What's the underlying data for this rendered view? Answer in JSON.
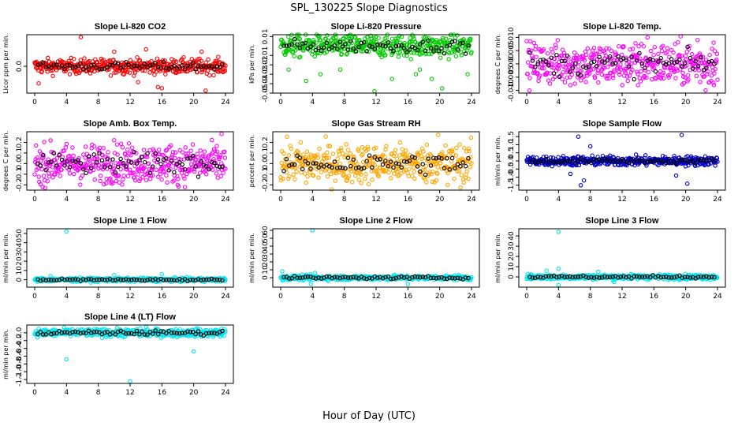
{
  "figure": {
    "title": "SPL_130225  Slope Diagnostics",
    "xlabel": "Hour of Day (UTC)"
  },
  "chart_data": [
    {
      "type": "scatter",
      "title": "Slope Li-820 CO2",
      "ylabel": "Licor ppm per min.",
      "color": "#ff0000",
      "xlim": [
        0,
        24
      ],
      "xticks": [
        0,
        4,
        8,
        12,
        16,
        20,
        24
      ],
      "ylim": [
        -1.1,
        1.3
      ],
      "yticks": [
        {
          "v": 0.0,
          "label": "0.0"
        }
      ],
      "series": [
        {
          "center": 0.0,
          "spread": 0.15,
          "outliers": [
            [
              5.8,
              1.2
            ],
            [
              0.5,
              -0.7
            ],
            [
              10,
              0.6
            ],
            [
              13,
              -0.65
            ],
            [
              15.5,
              -0.85
            ],
            [
              16,
              -0.9
            ],
            [
              21.5,
              -1.0
            ],
            [
              21,
              0.6
            ],
            [
              14,
              0.7
            ]
          ]
        }
      ]
    },
    {
      "type": "scatter",
      "title": "Slope Li-820 Pressure",
      "ylabel": "kPa per min.",
      "color": "#00cc00",
      "xlim": [
        0,
        24
      ],
      "xticks": [
        0,
        4,
        8,
        12,
        16,
        20,
        24
      ],
      "ylim": [
        -0.05,
        0.012
      ],
      "yticks": [
        {
          "v": 0.01,
          "label": "0.01"
        },
        {
          "v": -0.01,
          "label": "-0.01"
        },
        {
          "v": -0.02,
          "label": "-0.02"
        },
        {
          "v": -0.03,
          "label": "-0.03"
        },
        {
          "v": -0.04,
          "label": "-0.04"
        },
        {
          "v": -0.05,
          "label": "-0.05"
        }
      ],
      "series": [
        {
          "center": 0.0,
          "spread": 0.006,
          "outliers": [
            [
              1,
              -0.025
            ],
            [
              3.2,
              -0.037
            ],
            [
              5,
              -0.03
            ],
            [
              7.5,
              -0.025
            ],
            [
              11.8,
              -0.048
            ],
            [
              14,
              -0.035
            ],
            [
              17,
              -0.03
            ],
            [
              17.5,
              -0.025
            ],
            [
              19,
              -0.035
            ],
            [
              20.3,
              -0.045
            ],
            [
              23.5,
              -0.03
            ]
          ]
        }
      ]
    },
    {
      "type": "scatter",
      "title": "Slope Li-820 Temp.",
      "ylabel": "degrees C per min.",
      "color": "#ff00ff",
      "xlim": [
        0,
        24
      ],
      "xticks": [
        0,
        4,
        8,
        12,
        16,
        20,
        24
      ],
      "ylim": [
        -0.011,
        0.011
      ],
      "yticks": [
        {
          "v": 0.01,
          "label": "0.010"
        },
        {
          "v": 0.005,
          "label": "0.005"
        },
        {
          "v": 0.0,
          "label": "0.000"
        },
        {
          "v": -0.005,
          "label": "-0.005"
        },
        {
          "v": -0.01,
          "label": "-0.010"
        }
      ],
      "series": [
        {
          "center": 0.0,
          "spread": 0.004,
          "outliers": [
            [
              15.2,
              0.01
            ],
            [
              21.5,
              0.009
            ],
            [
              23.5,
              0.008
            ],
            [
              14,
              -0.008
            ],
            [
              22.5,
              -0.01
            ],
            [
              9,
              -0.007
            ]
          ]
        }
      ]
    },
    {
      "type": "scatter",
      "title": "Slope Amb. Box Temp.",
      "ylabel": "degrees C per min.",
      "color": "#ff00ff",
      "xlim": [
        0,
        24
      ],
      "xticks": [
        0,
        4,
        8,
        12,
        16,
        20,
        24
      ],
      "ylim": [
        -0.25,
        0.3
      ],
      "yticks": [
        {
          "v": 0.2,
          "label": "0.2"
        },
        {
          "v": 0.1,
          "label": "0.1"
        },
        {
          "v": 0.0,
          "label": "0.0"
        },
        {
          "v": -0.1,
          "label": "-0.1"
        },
        {
          "v": -0.2,
          "label": "-0.2"
        }
      ],
      "series": [
        {
          "center": 0.0,
          "spread": 0.09,
          "outliers": [
            [
              23.5,
              0.28
            ],
            [
              1,
              -0.22
            ],
            [
              10,
              0.22
            ],
            [
              18,
              -0.2
            ]
          ]
        }
      ]
    },
    {
      "type": "scatter",
      "title": "Slope Gas Stream RH",
      "ylabel": "percent per min.",
      "color": "#ffa500",
      "xlim": [
        0,
        24
      ],
      "xticks": [
        0,
        4,
        8,
        12,
        16,
        20,
        24
      ],
      "ylim": [
        -0.25,
        0.3
      ],
      "yticks": [
        {
          "v": 0.2,
          "label": "0.2"
        },
        {
          "v": 0.1,
          "label": "0.1"
        },
        {
          "v": 0.0,
          "label": "0.0"
        },
        {
          "v": -0.1,
          "label": "-0.1"
        },
        {
          "v": -0.2,
          "label": "-0.2"
        }
      ],
      "series": [
        {
          "center": 0.0,
          "spread": 0.09,
          "outliers": [
            [
              19.8,
              0.27
            ],
            [
              21,
              -0.2
            ],
            [
              3.2,
              -0.18
            ]
          ]
        }
      ]
    },
    {
      "type": "scatter",
      "title": "Slope Sample Flow",
      "ylabel": "ml/min per min.",
      "color": "#0000cc",
      "xlim": [
        0,
        24
      ],
      "xticks": [
        0,
        4,
        8,
        12,
        16,
        20,
        24
      ],
      "ylim": [
        -1.8,
        1.8
      ],
      "yticks": [
        {
          "v": 1.5,
          "label": "1.5"
        },
        {
          "v": 1.0,
          "label": "1.0"
        },
        {
          "v": 0.5,
          "label": "0.5"
        },
        {
          "v": 0.0,
          "label": "0.0"
        },
        {
          "v": -0.5,
          "label": "-0.5"
        },
        {
          "v": -1.0,
          "label": "-1.0"
        },
        {
          "v": -1.5,
          "label": "-1.5"
        }
      ],
      "series": [
        {
          "center": 0.0,
          "spread": 0.15,
          "outliers": [
            [
              6.5,
              1.5
            ],
            [
              6.8,
              -1.5
            ],
            [
              7.2,
              -1.2
            ],
            [
              19.5,
              1.6
            ],
            [
              20.2,
              -1.4
            ],
            [
              5.5,
              -0.8
            ],
            [
              8,
              0.9
            ],
            [
              18.8,
              -0.9
            ]
          ]
        }
      ]
    },
    {
      "type": "scatter",
      "title": "Slope Line 1 Flow",
      "ylabel": "ml/min per min.",
      "color": "#00e5ee",
      "xlim": [
        0,
        24
      ],
      "xticks": [
        0,
        4,
        8,
        12,
        16,
        20,
        24
      ],
      "ylim": [
        -8,
        55
      ],
      "yticks": [
        {
          "v": 50,
          "label": "50"
        },
        {
          "v": 40,
          "label": "40"
        },
        {
          "v": 30,
          "label": "30"
        },
        {
          "v": 20,
          "label": "20"
        },
        {
          "v": 10,
          "label": "10"
        },
        {
          "v": 0,
          "label": "0"
        }
      ],
      "series": [
        {
          "center": 0.0,
          "spread": 1.0,
          "outliers": [
            [
              4,
              52
            ],
            [
              16,
              6
            ],
            [
              10,
              5
            ],
            [
              2,
              4
            ]
          ]
        }
      ]
    },
    {
      "type": "scatter",
      "title": "Slope Line 2 Flow",
      "ylabel": "ml/min per min.",
      "color": "#00e5ee",
      "xlim": [
        0,
        24
      ],
      "xticks": [
        0,
        4,
        8,
        12,
        16,
        20,
        24
      ],
      "ylim": [
        -12,
        62
      ],
      "yticks": [
        {
          "v": 60,
          "label": "60"
        },
        {
          "v": 50,
          "label": "50"
        },
        {
          "v": 40,
          "label": "40"
        },
        {
          "v": 30,
          "label": "30"
        },
        {
          "v": 20,
          "label": "20"
        },
        {
          "v": 10,
          "label": "10"
        },
        {
          "v": 0,
          "label": "0"
        }
      ],
      "series": [
        {
          "center": 0.0,
          "spread": 1.5,
          "outliers": [
            [
              4,
              60
            ],
            [
              0.2,
              8
            ],
            [
              3.8,
              -8
            ],
            [
              4.3,
              6
            ],
            [
              16,
              -8
            ]
          ]
        }
      ]
    },
    {
      "type": "scatter",
      "title": "Slope Line 3 Flow",
      "ylabel": "ml/min per min.",
      "color": "#00e5ee",
      "xlim": [
        0,
        24
      ],
      "xticks": [
        0,
        4,
        8,
        12,
        16,
        20,
        24
      ],
      "ylim": [
        -10,
        47
      ],
      "yticks": [
        {
          "v": 40,
          "label": "40"
        },
        {
          "v": 30,
          "label": "30"
        },
        {
          "v": 20,
          "label": "20"
        },
        {
          "v": 10,
          "label": "10"
        },
        {
          "v": 0,
          "label": "0"
        }
      ],
      "series": [
        {
          "center": 0.0,
          "spread": 1.2,
          "outliers": [
            [
              4,
              44
            ],
            [
              4,
              -8
            ],
            [
              4,
              8
            ],
            [
              2.5,
              6
            ],
            [
              11,
              -5
            ],
            [
              9,
              5
            ]
          ]
        }
      ]
    },
    {
      "type": "scatter",
      "title": "Slope Line 4 (LT) Flow",
      "ylabel": "ml/min per min.",
      "color": "#00e5ee",
      "xlim": [
        0,
        24
      ],
      "xticks": [
        0,
        4,
        8,
        12,
        16,
        20,
        24
      ],
      "ylim": [
        -1.3,
        0.2
      ],
      "yticks": [
        {
          "v": 0.0,
          "label": "0.0"
        },
        {
          "v": -0.2,
          "label": "-0.2"
        },
        {
          "v": -0.4,
          "label": "-0.4"
        },
        {
          "v": -0.6,
          "label": "-0.6"
        },
        {
          "v": -0.8,
          "label": "-0.8"
        },
        {
          "v": -1.0,
          "label": "-1.0"
        },
        {
          "v": -1.2,
          "label": "-1.2"
        }
      ],
      "series": [
        {
          "center": 0.0,
          "spread": 0.05,
          "outliers": [
            [
              4,
              -0.68
            ],
            [
              12,
              -1.25
            ],
            [
              20,
              -0.48
            ],
            [
              14,
              0.15
            ]
          ]
        }
      ]
    }
  ]
}
